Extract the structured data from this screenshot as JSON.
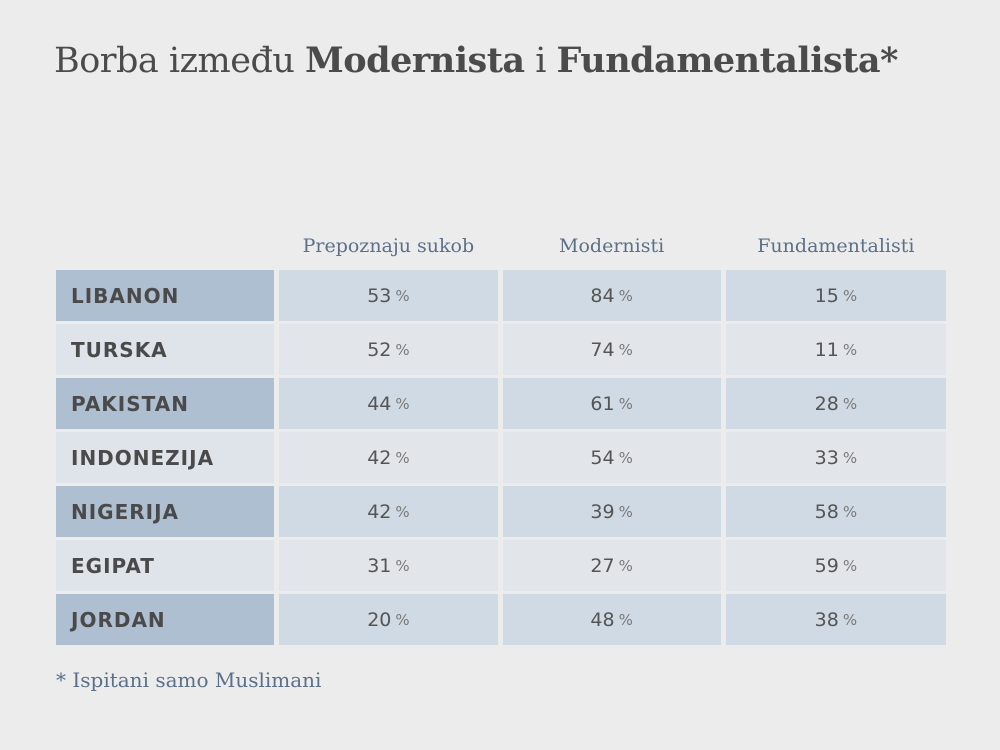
{
  "title": {
    "prefix": "Borba između ",
    "bold1": "Modernista",
    "middle": " i ",
    "bold2": "Fundamentalista",
    "asterisk": "*"
  },
  "chart_data": {
    "type": "table",
    "columns": [
      "Prepoznaju sukob",
      "Modernisti",
      "Fundamentalisti"
    ],
    "unit": "%",
    "rows": [
      {
        "country": "LIBANON",
        "values": [
          "53",
          "84",
          "15"
        ]
      },
      {
        "country": "TURSKA",
        "values": [
          "52",
          "74",
          "11"
        ]
      },
      {
        "country": "PAKISTAN",
        "values": [
          "44",
          "61",
          "28"
        ]
      },
      {
        "country": "INDONEZIJA",
        "values": [
          "42",
          "54",
          "33"
        ]
      },
      {
        "country": "NIGERIJA",
        "values": [
          "42",
          "39",
          "58"
        ]
      },
      {
        "country": "EGIPAT",
        "values": [
          "31",
          "27",
          "59"
        ]
      },
      {
        "country": "JORDAN",
        "values": [
          "20",
          "48",
          "38"
        ]
      }
    ]
  },
  "footnote": "* Ispitani samo Muslimani"
}
